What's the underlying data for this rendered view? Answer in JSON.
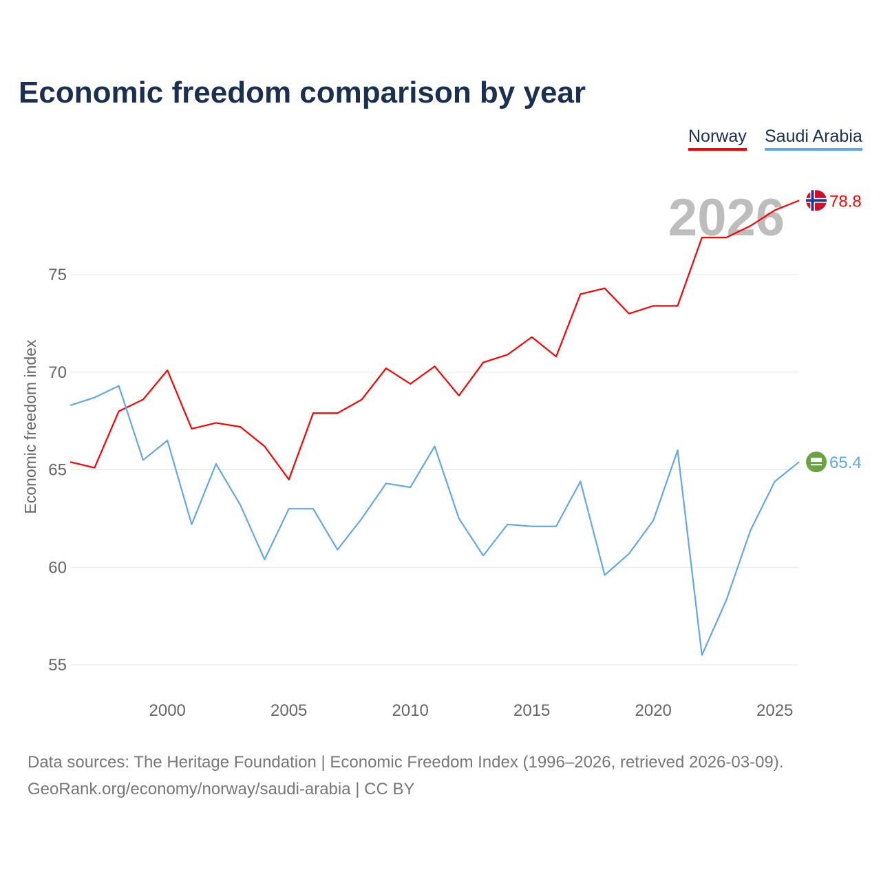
{
  "title": "Economic freedom comparison by year",
  "source_line1": "Data sources: The Heritage Foundation | Economic Freedom Index (1996–2026, retrieved 2026-03-09).",
  "source_line2": "GeoRank.org/economy/norway/saudi-arabia | CC BY",
  "chart_data": {
    "type": "line",
    "title": "Economic freedom comparison by year",
    "ylabel": "Economic freedom index",
    "xlabel": "",
    "year_watermark": "2026",
    "xlim": [
      1996,
      2026
    ],
    "ylim": [
      53.5,
      81.5
    ],
    "xticks": [
      2000,
      2005,
      2010,
      2015,
      2020,
      2025
    ],
    "yticks": [
      55,
      60,
      65,
      70,
      75
    ],
    "grid": true,
    "legend_position": "top-right",
    "x": [
      1996,
      1997,
      1998,
      1999,
      2000,
      2001,
      2002,
      2003,
      2004,
      2005,
      2006,
      2007,
      2008,
      2009,
      2010,
      2011,
      2012,
      2013,
      2014,
      2015,
      2016,
      2017,
      2018,
      2019,
      2020,
      2021,
      2022,
      2023,
      2024,
      2025,
      2026
    ],
    "series": [
      {
        "name": "Norway",
        "color": "#ff0000",
        "end_label": "78.8",
        "values": [
          65.4,
          65.1,
          68.0,
          68.6,
          70.1,
          67.1,
          67.4,
          67.2,
          66.2,
          64.5,
          67.9,
          67.9,
          68.6,
          70.2,
          69.4,
          70.3,
          68.8,
          70.5,
          70.9,
          71.8,
          70.8,
          74.0,
          74.3,
          73.0,
          73.4,
          73.4,
          76.9,
          76.9,
          77.5,
          78.3,
          78.8
        ]
      },
      {
        "name": "Saudi Arabia",
        "color": "#62a8e8",
        "end_label": "65.4",
        "values": [
          68.3,
          68.7,
          69.3,
          65.5,
          66.5,
          62.2,
          65.3,
          63.2,
          60.4,
          63.0,
          63.0,
          60.9,
          62.5,
          64.3,
          64.1,
          66.2,
          62.5,
          60.6,
          62.2,
          62.1,
          62.1,
          64.4,
          59.6,
          60.7,
          62.4,
          66.0,
          55.5,
          58.3,
          61.9,
          64.4,
          65.4
        ]
      }
    ]
  }
}
